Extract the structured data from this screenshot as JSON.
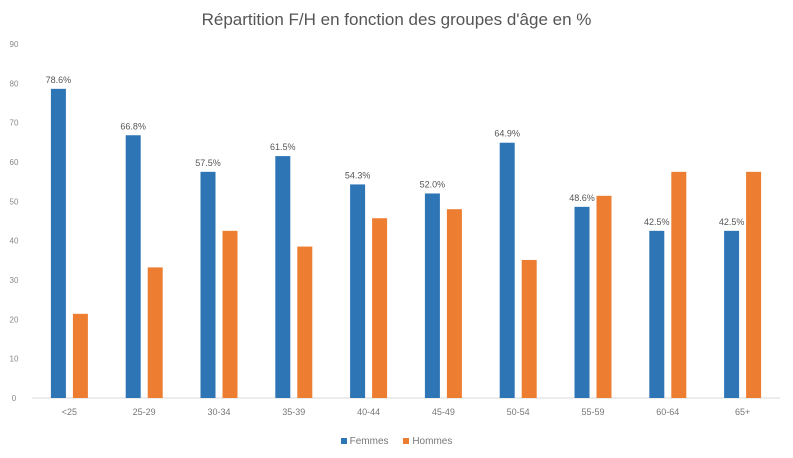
{
  "chart_data": {
    "type": "bar",
    "title": "Répartition F/H en fonction des groupes d'âge en %",
    "categories": [
      "<25",
      "25-29",
      "30-34",
      "35-39",
      "40-44",
      "45-49",
      "50-54",
      "55-59",
      "60-64",
      "65+"
    ],
    "series": [
      {
        "name": "Femmes",
        "color": "#2e75b6",
        "values": [
          78.6,
          66.8,
          57.5,
          61.5,
          54.3,
          52.0,
          64.9,
          48.6,
          42.5,
          42.5
        ]
      },
      {
        "name": "Hommes",
        "color": "#ed7d31",
        "values": [
          21.4,
          33.2,
          42.5,
          38.5,
          45.7,
          48.0,
          35.1,
          51.4,
          57.5,
          57.5
        ]
      }
    ],
    "data_labels": [
      "78.6%",
      "66.8%",
      "57.5%",
      "61.5%",
      "54.3%",
      "52.0%",
      "64.9%",
      "48.6%",
      "42.5%",
      "42.5%"
    ],
    "ylim": [
      0,
      90
    ],
    "yticks": [
      0,
      10,
      20,
      30,
      40,
      50,
      60,
      70,
      80,
      90
    ],
    "xlabel": "",
    "ylabel": "",
    "grid": false,
    "legend_position": "bottom"
  }
}
